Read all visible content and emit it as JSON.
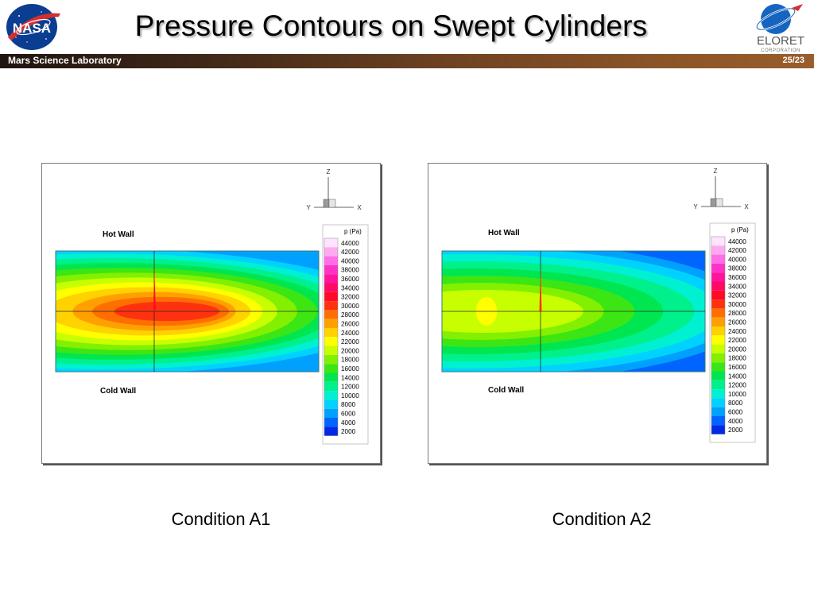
{
  "slide": {
    "title": "Pressure Contours on Swept Cylinders",
    "project": "Mars Science Laboratory",
    "page_number": "25/23"
  },
  "logos": {
    "nasa": {
      "text": "NASA"
    },
    "eloret": {
      "name": "ELORET",
      "subtitle": "CORPORATION"
    }
  },
  "colors": {
    "header_bar_dark": "#1f1410",
    "header_bar_light": "#9a5d2c"
  },
  "panels": [
    {
      "caption": "Condition A1",
      "hot_wall_label": "Hot Wall",
      "cold_wall_label": "Cold Wall",
      "axes": {
        "z": "Z",
        "y": "Y",
        "x": "X"
      },
      "legend_title": "p (Pa)",
      "peak_level": 32000,
      "field": [
        {
          "level": 8000,
          "rx": 1.12
        },
        {
          "level": 10000,
          "rx": 1.02
        },
        {
          "level": 12000,
          "rx": 0.92
        },
        {
          "level": 14000,
          "rx": 0.83
        },
        {
          "level": 16000,
          "rx": 0.74
        },
        {
          "level": 18000,
          "rx": 0.64
        },
        {
          "level": 20000,
          "rx": 0.54
        },
        {
          "level": 22000,
          "rx": 0.46
        },
        {
          "level": 24000,
          "rx": 0.39
        },
        {
          "level": 26000,
          "rx": 0.31
        },
        {
          "level": 28000,
          "rx": 0.26
        },
        {
          "level": 30000,
          "rx": 0.2
        }
      ]
    },
    {
      "caption": "Condition A2",
      "hot_wall_label": "Hot Wall",
      "cold_wall_label": "Cold Wall",
      "axes": {
        "z": "Z",
        "y": "Y",
        "x": "X"
      },
      "legend_title": "p (Pa)",
      "peak_level": 30000,
      "field": [
        {
          "level": 6000,
          "rx": 1.12
        },
        {
          "level": 8000,
          "rx": 1.05
        },
        {
          "level": 10000,
          "rx": 0.96
        },
        {
          "level": 12000,
          "rx": 0.85
        },
        {
          "level": 14000,
          "rx": 0.72
        },
        {
          "level": 16000,
          "rx": 0.6
        },
        {
          "level": 18000,
          "rx": 0.47
        },
        {
          "level": 20000,
          "rx": 0.38
        },
        {
          "level": 22000,
          "rx": 0.04
        }
      ]
    }
  ],
  "legend_levels": [
    {
      "value": 44000,
      "color": "#ffe4ff"
    },
    {
      "value": 42000,
      "color": "#ffaaf0"
    },
    {
      "value": 40000,
      "color": "#ff6ee6"
    },
    {
      "value": 38000,
      "color": "#ff32c8"
    },
    {
      "value": 36000,
      "color": "#ff14a0"
    },
    {
      "value": 34000,
      "color": "#ff0a64"
    },
    {
      "value": 32000,
      "color": "#ff0a28"
    },
    {
      "value": 30000,
      "color": "#ff3210"
    },
    {
      "value": 28000,
      "color": "#ff6e00"
    },
    {
      "value": 26000,
      "color": "#ffa000"
    },
    {
      "value": 24000,
      "color": "#ffd200"
    },
    {
      "value": 22000,
      "color": "#ffff00"
    },
    {
      "value": 20000,
      "color": "#c8ff00"
    },
    {
      "value": 18000,
      "color": "#82f000"
    },
    {
      "value": 16000,
      "color": "#3ce614"
    },
    {
      "value": 14000,
      "color": "#00e650"
    },
    {
      "value": 12000,
      "color": "#00f08c"
    },
    {
      "value": 10000,
      "color": "#00f0d2"
    },
    {
      "value": 8000,
      "color": "#00d2ff"
    },
    {
      "value": 6000,
      "color": "#00a0ff"
    },
    {
      "value": 4000,
      "color": "#0064ff"
    },
    {
      "value": 2000,
      "color": "#0028e6"
    }
  ]
}
